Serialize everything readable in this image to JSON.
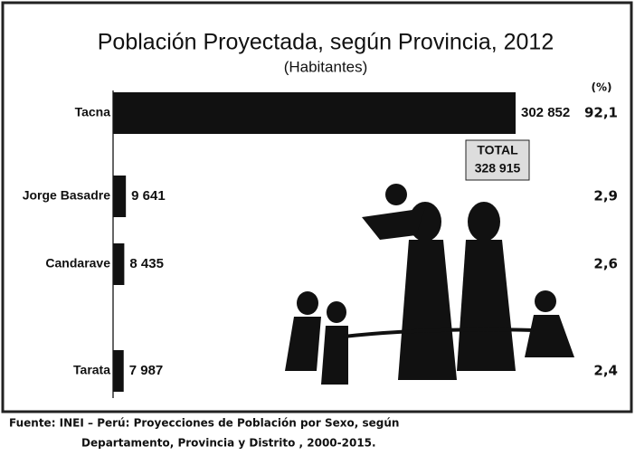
{
  "chart_data": {
    "type": "hbar",
    "title": "Población Proyectada, según Provincia, 2012",
    "subtitle": "(Habitantes)",
    "categories": [
      "Tacna",
      "Jorge Basadre",
      "Candarave",
      "Tarata"
    ],
    "values": [
      302852,
      9641,
      8435,
      7987
    ],
    "value_labels": [
      "302 852",
      "9 641",
      "8 435",
      "7 987"
    ],
    "color": "#111111",
    "percent": {
      "header": "(%)",
      "values": [
        92.1,
        2.9,
        2.6,
        2.4
      ],
      "value_labels": [
        "92,1",
        "2,9",
        "2,6",
        "2,4"
      ]
    },
    "total": {
      "label": "TOTAL",
      "value": 328915,
      "value_label": "328 915"
    },
    "source": [
      "Fuente: INEI – Perú: Proyecciones de Población por Sexo, según",
      "Departamento, Provincia y Distrito , 2000-2015."
    ]
  }
}
